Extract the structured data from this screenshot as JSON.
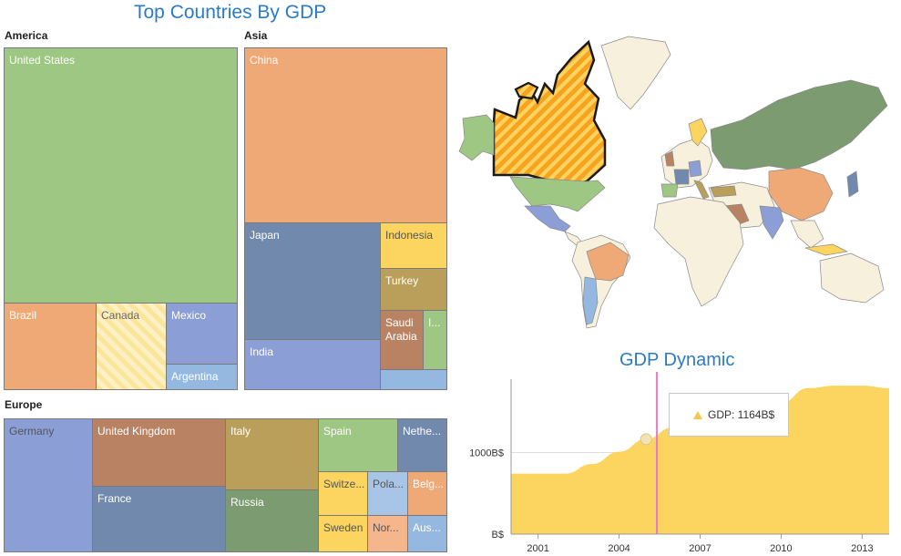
{
  "treemap": {
    "title": "Top Countries By GDP",
    "groups": [
      {
        "name": "America",
        "tiles": [
          {
            "label": "United States",
            "color": "#9dc783"
          },
          {
            "label": "Brazil",
            "color": "#efa976"
          },
          {
            "label": "Canada",
            "color": "#fbe59a",
            "highlighted": true
          },
          {
            "label": "Mexico",
            "color": "#8b9ed6"
          },
          {
            "label": "Argentina",
            "color": "#95b8e0"
          }
        ]
      },
      {
        "name": "Asia",
        "tiles": [
          {
            "label": "China",
            "color": "#efa976"
          },
          {
            "label": "Japan",
            "color": "#7189ad"
          },
          {
            "label": "Indonesia",
            "color": "#fcd460"
          },
          {
            "label": "Turkey",
            "color": "#b99f5a"
          },
          {
            "label": "Saudi Arabia",
            "color": "#b98363"
          },
          {
            "label": "I...",
            "color": "#9dc783"
          },
          {
            "label": "India",
            "color": "#8b9ed6"
          },
          {
            "label": "",
            "color": "#95b8e0"
          }
        ]
      },
      {
        "name": "Europe",
        "tiles": [
          {
            "label": "Germany",
            "color": "#8b9ed6"
          },
          {
            "label": "United Kingdom",
            "color": "#b98363"
          },
          {
            "label": "France",
            "color": "#7189ad"
          },
          {
            "label": "Italy",
            "color": "#b99f5a"
          },
          {
            "label": "Russia",
            "color": "#7d9b70"
          },
          {
            "label": "Spain",
            "color": "#9dc783"
          },
          {
            "label": "Nethe...",
            "color": "#7189ad"
          },
          {
            "label": "Switze...",
            "color": "#fcd460"
          },
          {
            "label": "Pola...",
            "color": "#a8c5e8"
          },
          {
            "label": "Belg...",
            "color": "#efa976"
          },
          {
            "label": "Sweden",
            "color": "#fcd460"
          },
          {
            "label": "Nor...",
            "color": "#f6b68c"
          },
          {
            "label": "Aus...",
            "color": "#95b8e0"
          }
        ]
      }
    ]
  },
  "map": {
    "highlighted_country": "Canada",
    "colors": {
      "land": "#f6f0dd",
      "highlight": "#f7a320",
      "border": "#7a7a7a"
    }
  },
  "chart_data": {
    "type": "area",
    "title": "GDP Dynamic",
    "x": [
      2000,
      2001,
      2002,
      2003,
      2004,
      2005,
      2006,
      2007,
      2008,
      2009,
      2010,
      2011,
      2012,
      2013,
      2014
    ],
    "values": [
      742,
      742,
      742,
      860,
      1010,
      1164,
      1310,
      1460,
      1540,
      1380,
      1610,
      1790,
      1820,
      1820,
      1790
    ],
    "xticks": [
      "2001",
      "2004",
      "2007",
      "2010",
      "2013"
    ],
    "ytick_labels": [
      "B$",
      "1000B$"
    ],
    "yticks": [
      0,
      1000
    ],
    "ylim": [
      0,
      1900
    ],
    "series_color": "#fcd460",
    "crosshair_x": 2005.4,
    "marker": {
      "x": 2005,
      "y": 1164
    },
    "tooltip": "GDP: 1164B$"
  }
}
